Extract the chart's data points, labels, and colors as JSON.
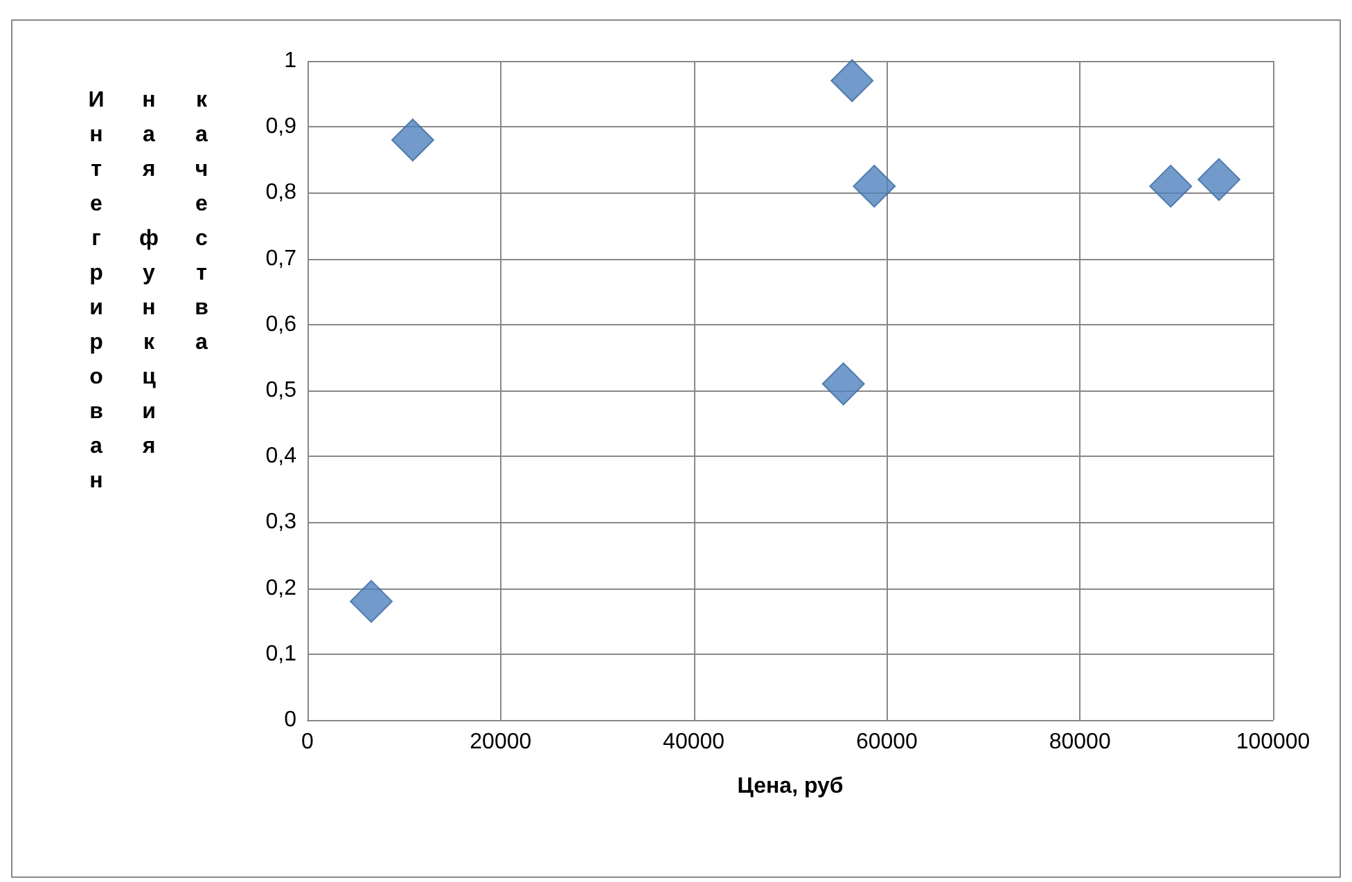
{
  "chart_data": {
    "type": "scatter",
    "xlabel": "Цена, руб",
    "ylabel": "Интегрированная функция качества",
    "x": [
      6600,
      10900,
      55500,
      56400,
      58700,
      89400,
      94400
    ],
    "series": [
      {
        "color": "#4f81bd",
        "values": [
          0.18,
          0.88,
          0.51,
          0.97,
          0.81,
          0.81,
          0.82
        ]
      }
    ],
    "xlim": [
      0,
      100000
    ],
    "xticks": [
      0,
      20000,
      40000,
      60000,
      80000,
      100000
    ],
    "ylim": [
      0,
      1
    ],
    "yticks": [
      0,
      {
        "value": 0.1,
        "label": "0,1"
      },
      {
        "value": 0.2,
        "label": "0,2"
      },
      {
        "value": 0.3,
        "label": "0,3"
      },
      {
        "value": 0.4,
        "label": "0,4"
      },
      {
        "value": 0.5,
        "label": "0,5"
      },
      {
        "value": 0.6,
        "label": "0,6"
      },
      {
        "value": 0.7,
        "label": "0,7"
      },
      {
        "value": 0.8,
        "label": "0,8"
      },
      {
        "value": 0.9,
        "label": "0,9"
      },
      1
    ],
    "grid": true,
    "marker": "diamond"
  }
}
